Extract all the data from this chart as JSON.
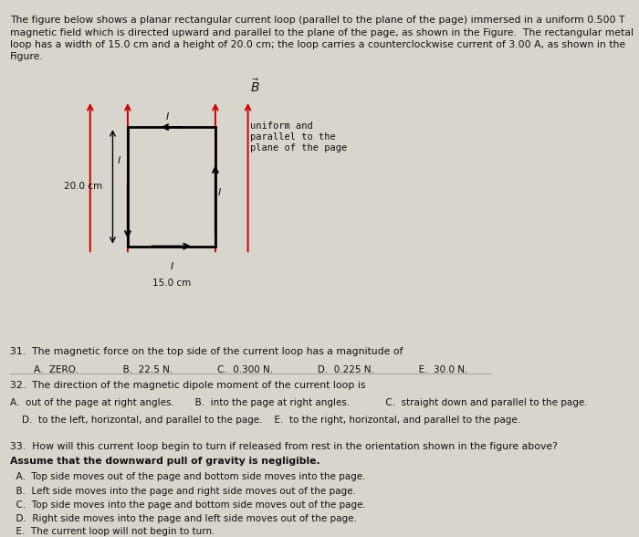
{
  "bg_color": "#d8d5cc",
  "title_text": "The figure below shows a planar rectangular current loop (parallel to the plane of the page) immersed in a uniform 0.500 T\nmagnetic field which is directed upward and parallel to the plane of the page, as shown in the Figure.  The rectangular metal\nloop has a width of 15.0 cm and a height of 20.0 cm; the loop carries a counterclockwise current of 3.00 A, as shown in the\nFigure.",
  "q31_text": "31.  The magnetic force on the top side of the current loop has a magnitude of",
  "q31_answers": "        A.  ZERO.               B.  22.5 N.               C.  0.300 N.               D.  0.225 N.               E.  30.0 N.",
  "q32_text": "32.  The direction of the magnetic dipole moment of the current loop is",
  "q32_a": "A.  out of the page at right angles.       B.  into the page at right angles.            C.  straight down and parallel to the page.",
  "q32_b": "    D.  to the left, horizontal, and parallel to the page.    E.  to the right, horizontal, and parallel to the page.",
  "q33_text": "33.  How will this current loop begin to turn if released from rest in the orientation shown in the figure above?",
  "q33_bold": "Assume that the downward pull of gravity is negligible.",
  "q33_a": "  A.  Top side moves out of the page and bottom side moves into the page.",
  "q33_b": "  B.  Left side moves into the page and right side moves out of the page.",
  "q33_c": "  C.  Top side moves into the page and bottom side moves out of the page.",
  "q33_d": "  D.  Right side moves into the page and left side moves out of the page.",
  "q33_e": "  E.  The current loop will not begin to turn.",
  "arrow_color": "#cc0000",
  "text_color": "#111111",
  "loop_label_20": "20.0 cm",
  "loop_label_15": "15.0 cm",
  "B_label": "uniform and\nparallel to the\nplane of the page"
}
